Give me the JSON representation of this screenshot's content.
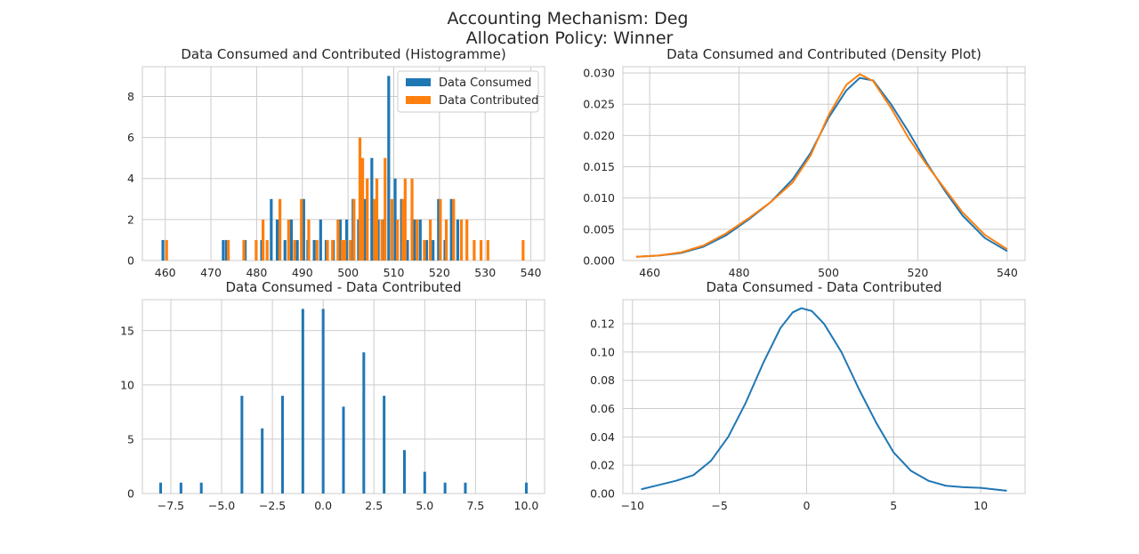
{
  "figure": {
    "title_line1": "Accounting Mechanism: Deg",
    "title_line2": "Allocation Policy: Winner"
  },
  "colors": {
    "consumed": "#1f77b4",
    "contributed": "#ff7f0e"
  },
  "chart_data": [
    {
      "id": "hist",
      "type": "bar",
      "title": "Data Consumed and Contributed (Histogramme)",
      "xlabel": "",
      "ylabel": "",
      "xlim": [
        455,
        543
      ],
      "ylim": [
        0,
        9.45
      ],
      "xticks": [
        460,
        470,
        480,
        490,
        500,
        510,
        520,
        530,
        540
      ],
      "yticks": [
        0,
        2,
        4,
        6,
        8
      ],
      "legend": "top-right",
      "series": [
        {
          "name": "Data Consumed",
          "x": [
            459.5,
            472.7,
            473.4,
            477.5,
            481.1,
            483.2,
            484.5,
            486.2,
            487.6,
            488.9,
            490.3,
            491.2,
            492.6,
            494.0,
            495.2,
            496.8,
            498.3,
            499.7,
            501.1,
            502.3,
            503.7,
            505.2,
            506.6,
            507.8,
            508.9,
            510.3,
            511.7,
            513.0,
            514.5,
            515.8,
            517.2,
            518.6,
            519.8,
            521.2,
            522.6,
            524.0
          ],
          "values": [
            1,
            1,
            1,
            1,
            1,
            3,
            2,
            1,
            2,
            1,
            3,
            1,
            1,
            2,
            1,
            1,
            2,
            2,
            3,
            2,
            3,
            5,
            2,
            2,
            9,
            4,
            3,
            1,
            2,
            2,
            1,
            1,
            3,
            1,
            3,
            2
          ]
        },
        {
          "name": "Data Contributed",
          "x": [
            460.3,
            473.8,
            477.2,
            479.9,
            481.4,
            482.3,
            485.1,
            487.0,
            488.3,
            489.8,
            491.4,
            493.2,
            495.5,
            496.6,
            497.8,
            498.7,
            499.3,
            500.5,
            501.3,
            502.6,
            503.2,
            504.2,
            505.8,
            506.3,
            507.4,
            508.1,
            509.6,
            510.8,
            512.0,
            512.5,
            514.0,
            515.1,
            516.7,
            518.0,
            520.2,
            521.5,
            523.1,
            524.8,
            526.0,
            527.6,
            529.1,
            530.6,
            538.3
          ],
          "values": [
            1,
            1,
            1,
            1,
            2,
            1,
            3,
            2,
            1,
            3,
            2,
            1,
            1,
            1,
            2,
            1,
            1,
            1,
            3,
            6,
            5,
            4,
            3,
            4,
            2,
            5,
            3,
            2,
            3,
            4,
            4,
            2,
            1,
            2,
            3,
            2,
            3,
            2,
            2,
            1,
            1,
            1,
            1
          ]
        }
      ]
    },
    {
      "id": "density",
      "type": "line",
      "title": "Data Consumed and Contributed (Density Plot)",
      "xlabel": "",
      "ylabel": "",
      "xlim": [
        454,
        544
      ],
      "ylim": [
        0,
        0.031
      ],
      "xticks": [
        460,
        480,
        500,
        520,
        540
      ],
      "yticks": [
        0.0,
        0.005,
        0.01,
        0.015,
        0.02,
        0.025,
        0.03
      ],
      "series": [
        {
          "name": "Data Consumed",
          "x": [
            457,
            462,
            467,
            472,
            477,
            482,
            487,
            492,
            496,
            500,
            504,
            507,
            510,
            514,
            518,
            522,
            526,
            530,
            535,
            540
          ],
          "values": [
            0.0006,
            0.0008,
            0.0012,
            0.0022,
            0.004,
            0.0065,
            0.0093,
            0.013,
            0.0172,
            0.0228,
            0.0272,
            0.0292,
            0.0288,
            0.025,
            0.0205,
            0.0156,
            0.0112,
            0.0072,
            0.0036,
            0.0015
          ]
        },
        {
          "name": "Data Contributed",
          "x": [
            457,
            462,
            467,
            472,
            477,
            482,
            487,
            492,
            496,
            500,
            504,
            507,
            510,
            514,
            518,
            522,
            526,
            530,
            535,
            540
          ],
          "values": [
            0.0006,
            0.0008,
            0.0013,
            0.0024,
            0.0043,
            0.0067,
            0.0093,
            0.0125,
            0.0168,
            0.0232,
            0.0281,
            0.0298,
            0.0287,
            0.0244,
            0.0195,
            0.0153,
            0.0115,
            0.0077,
            0.0041,
            0.0018
          ]
        }
      ]
    },
    {
      "id": "diffhist",
      "type": "bar",
      "title": "Data Consumed - Data Contributed",
      "xlabel": "",
      "ylabel": "",
      "xlim": [
        -8.9,
        10.9
      ],
      "ylim": [
        0,
        17.85
      ],
      "xticks": [
        -7.5,
        -5.0,
        -2.5,
        0.0,
        2.5,
        5.0,
        7.5,
        10.0
      ],
      "xticklabels": [
        "−7.5",
        "−5.0",
        "−2.5",
        "0.0",
        "2.5",
        "5.0",
        "7.5",
        "10.0"
      ],
      "yticks": [
        0,
        5,
        10,
        15
      ],
      "series": [
        {
          "name": "",
          "x": [
            -8,
            -7,
            -6,
            -4,
            -3,
            -2,
            -1,
            0,
            1,
            2,
            3,
            4,
            5,
            6,
            7,
            10
          ],
          "values": [
            1,
            1,
            1,
            9,
            6,
            9,
            17,
            17,
            8,
            13,
            9,
            4,
            2,
            1,
            1,
            1
          ]
        }
      ]
    },
    {
      "id": "diffdensity",
      "type": "line",
      "title": "Data Consumed - Data Contributed",
      "xlabel": "",
      "ylabel": "",
      "xlim": [
        -10.55,
        12.55
      ],
      "ylim": [
        0,
        0.137
      ],
      "xticks": [
        -10,
        -5,
        0,
        5,
        10
      ],
      "xticklabels": [
        "−10",
        "−5",
        "0",
        "5",
        "10"
      ],
      "yticks": [
        0.0,
        0.02,
        0.04,
        0.06,
        0.08,
        0.1,
        0.12
      ],
      "yticklabels": [
        "0.00",
        "0.02",
        "0.04",
        "0.06",
        "0.08",
        "0.10",
        "0.12"
      ],
      "series": [
        {
          "name": "",
          "x": [
            -9.5,
            -8.5,
            -7.5,
            -6.5,
            -5.5,
            -4.5,
            -3.5,
            -2.5,
            -1.5,
            -0.8,
            -0.3,
            0.3,
            1.0,
            2.0,
            3.0,
            4.0,
            5.0,
            6.0,
            7.0,
            8.0,
            9.0,
            10.0,
            11.5
          ],
          "values": [
            0.003,
            0.006,
            0.009,
            0.013,
            0.023,
            0.04,
            0.064,
            0.092,
            0.117,
            0.128,
            0.131,
            0.129,
            0.12,
            0.1,
            0.074,
            0.05,
            0.029,
            0.016,
            0.009,
            0.0055,
            0.0045,
            0.004,
            0.002
          ]
        }
      ]
    }
  ],
  "decimals": {
    "density_y": 3
  }
}
